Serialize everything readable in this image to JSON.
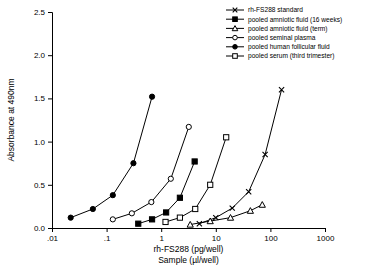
{
  "chart_data": {
    "type": "line",
    "log": "x",
    "xlabel": [
      "rh-FS288 (pg/well)",
      "Sample (µl/well)"
    ],
    "ylabel": "Absorbance at 490nm",
    "xlim": [
      0.01,
      1000
    ],
    "xticks": [
      {
        "value": 0.01,
        "label": ".01"
      },
      {
        "value": 0.1,
        "label": ".1"
      },
      1,
      10,
      100,
      1000
    ],
    "ylim": [
      0,
      2.5
    ],
    "yticks": [
      {
        "value": 0,
        "label": "0.0"
      },
      0.5,
      {
        "value": 1,
        "label": "1.0"
      },
      1.5,
      {
        "value": 2,
        "label": "2.0"
      },
      2.5
    ],
    "grid": false,
    "legend": "top-right",
    "series": [
      {
        "name": "rh-FS288 standard",
        "color": "#000000",
        "marker": "x",
        "line_style": "solid",
        "x": [
          5,
          10,
          20,
          40,
          80,
          160
        ],
        "values": [
          0.05,
          0.12,
          0.23,
          0.42,
          0.85,
          1.6
        ]
      },
      {
        "name": "pooled amniotic fluid (16 weeks)",
        "color": "#000000",
        "marker": "filled-square",
        "line_style": "solid",
        "x": [
          0.38,
          0.68,
          1.23,
          2.2,
          4.1
        ],
        "values": [
          0.05,
          0.1,
          0.18,
          0.35,
          0.77
        ]
      },
      {
        "name": "pooled amniotic fluid (term)",
        "color": "#000000",
        "marker": "open-triangle",
        "line_style": "solid",
        "x": [
          3.4,
          7.9,
          18.6,
          43,
          71
        ],
        "values": [
          0.04,
          0.08,
          0.12,
          0.2,
          0.27
        ]
      },
      {
        "name": "pooled seminal plasma",
        "color": "#000000",
        "marker": "open-circle",
        "line_style": "solid",
        "x": [
          0.13,
          0.29,
          0.66,
          1.5,
          3.2
        ],
        "values": [
          0.1,
          0.17,
          0.3,
          0.57,
          1.17
        ]
      },
      {
        "name": "pooled human follicular fluid",
        "color": "#000000",
        "marker": "filled-circle",
        "line_style": "solid",
        "x": [
          0.022,
          0.056,
          0.13,
          0.31,
          0.68
        ],
        "values": [
          0.12,
          0.22,
          0.38,
          0.75,
          1.52
        ]
      },
      {
        "name": "pooled serum (third trimester)",
        "color": "#000000",
        "marker": "open-square",
        "line_style": "solid",
        "x": [
          1.2,
          2.2,
          4.2,
          7.9,
          15.5
        ],
        "values": [
          0.07,
          0.12,
          0.22,
          0.5,
          1.05
        ]
      }
    ]
  }
}
